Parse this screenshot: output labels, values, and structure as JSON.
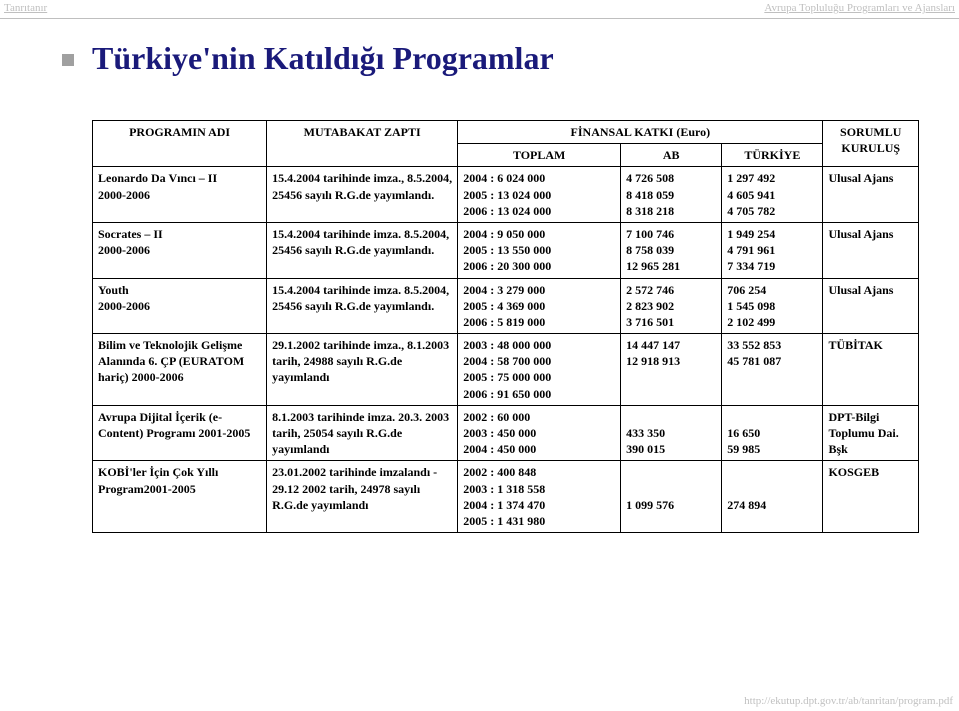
{
  "header": {
    "left": "Tanrıtanır",
    "right": "Avrupa Topluluğu Programları ve Ajansları"
  },
  "footer": {
    "url": "http://ekutup.dpt.gov.tr/ab/tanritan/program.pdf"
  },
  "title": "Türkiye'nin Katıldığı Programlar",
  "columns": {
    "name": "PROGRAMIN ADI",
    "zapti": "MUTABAKAT ZAPTI",
    "finansal": "FİNANSAL KATKI (Euro)",
    "toplam": "TOPLAM",
    "ab": "AB",
    "tr": "TÜRKİYE",
    "sorumlu": "SORUMLU KURULUŞ"
  },
  "rows": [
    {
      "name": "Leonardo Da Vıncı – II\n2000-2006",
      "zapti": "15.4.2004 tarihinde imza., 8.5.2004, 25456 sayılı R.G.de yayımlandı.",
      "toplam": "2004 : 6 024 000\n2005 : 13 024 000\n2006 : 13 024 000",
      "ab": "4 726 508\n8 418 059\n8 318 218",
      "tr": "1 297 492\n4 605 941\n4 705 782",
      "sorumlu": "Ulusal Ajans"
    },
    {
      "name": "Socrates – II\n2000-2006",
      "zapti": "15.4.2004 tarihinde imza. 8.5.2004, 25456 sayılı R.G.de yayımlandı.",
      "toplam": "2004 : 9 050 000\n2005 : 13 550 000\n2006 : 20 300 000",
      "ab": "7 100 746\n8 758 039\n12 965 281",
      "tr": "1 949 254\n4 791 961\n7 334 719",
      "sorumlu": "Ulusal Ajans"
    },
    {
      "name": "Youth\n2000-2006",
      "zapti": "15.4.2004 tarihinde imza. 8.5.2004, 25456 sayılı R.G.de yayımlandı.",
      "toplam": "2004 : 3 279 000\n2005 : 4 369 000\n2006 : 5 819 000",
      "ab": "2 572 746\n2 823 902\n3 716 501",
      "tr": "706 254\n1 545 098\n2 102 499",
      "sorumlu": "Ulusal Ajans"
    },
    {
      "name": "Bilim ve Teknolojik Gelişme Alanında 6. ÇP (EURATOM hariç) 2000-2006",
      "zapti": "29.1.2002 tarihinde imza., 8.1.2003 tarih, 24988 sayılı R.G.de yayımlandı",
      "toplam": "2003 : 48 000 000\n2004 : 58 700 000\n2005 : 75 000 000\n2006 : 91 650 000",
      "ab": "14 447 147\n12 918 913",
      "tr": "33 552 853\n45 781 087",
      "sorumlu": "TÜBİTAK"
    },
    {
      "name": "Avrupa Dijital İçerik (e-Content) Programı 2001-2005",
      "zapti": "8.1.2003 tarihinde imza. 20.3. 2003 tarih, 25054 sayılı R.G.de yayımlandı",
      "toplam": "2002 : 60 000\n2003 : 450 000\n2004 : 450 000",
      "ab": "\n433 350\n390 015",
      "tr": "\n16 650\n59 985",
      "sorumlu": "DPT-Bilgi Toplumu Dai. Bşk"
    },
    {
      "name": "KOBİ'ler İçin Çok Yıllı Program2001-2005",
      "zapti": "23.01.2002 tarihinde imzalandı - 29.12 2002 tarih, 24978 sayılı R.G.de yayımlandı",
      "toplam": "2002 : 400 848\n2003 : 1 318 558\n2004 : 1 374 470\n2005 : 1 431 980",
      "ab": "\n\n1 099 576",
      "tr": "\n\n274 894",
      "sorumlu": "KOSGEB"
    }
  ]
}
